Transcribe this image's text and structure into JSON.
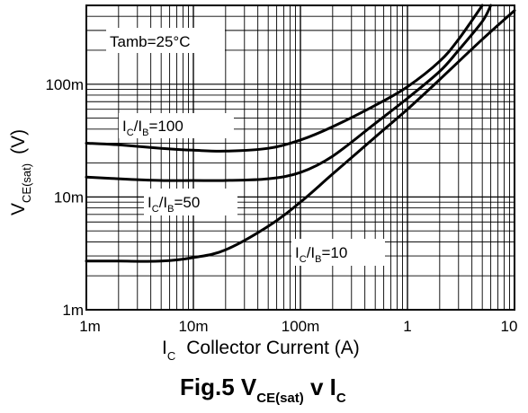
{
  "chart_data": {
    "type": "line",
    "x_scale": "log",
    "y_scale": "log",
    "xlim": [
      0.001,
      10
    ],
    "ylim": [
      0.001,
      0.5
    ],
    "x_ticks": [
      "1m",
      "10m",
      "100m",
      "1",
      "10"
    ],
    "y_ticks": [
      "1m",
      "10m",
      "100m"
    ],
    "xlabel_symbol": "I",
    "xlabel_sub": "C",
    "xlabel_text": "Collector Current (A)",
    "ylabel_symbol": "V",
    "ylabel_sub": "CE(sat)",
    "ylabel_unit": "(V)",
    "grid": true,
    "condition": "Tamb=25°C",
    "title_main": "Fig.5  V",
    "title_sub1": "CE(sat)",
    "title_mid": " v I",
    "title_sub2": "C",
    "series": [
      {
        "label_a": "I",
        "label_a_sub": "C",
        "label_b": "/I",
        "label_b_sub": "B",
        "label_c": "=100",
        "x": [
          0.001,
          0.002,
          0.005,
          0.01,
          0.02,
          0.05,
          0.1,
          0.2,
          0.5,
          1,
          2,
          3,
          5
        ],
        "y": [
          0.03,
          0.029,
          0.027,
          0.026,
          0.0255,
          0.027,
          0.032,
          0.042,
          0.065,
          0.095,
          0.16,
          0.25,
          0.5
        ]
      },
      {
        "label_a": "I",
        "label_a_sub": "C",
        "label_b": "/I",
        "label_b_sub": "B",
        "label_c": "=50",
        "x": [
          0.001,
          0.002,
          0.005,
          0.01,
          0.02,
          0.05,
          0.1,
          0.2,
          0.5,
          1,
          2,
          3,
          5,
          6
        ],
        "y": [
          0.015,
          0.0145,
          0.014,
          0.014,
          0.014,
          0.0145,
          0.0165,
          0.023,
          0.045,
          0.075,
          0.13,
          0.2,
          0.36,
          0.5
        ]
      },
      {
        "label_a": "I",
        "label_a_sub": "C",
        "label_b": "/I",
        "label_b_sub": "B",
        "label_c": "=10",
        "x": [
          0.001,
          0.002,
          0.005,
          0.01,
          0.02,
          0.05,
          0.1,
          0.2,
          0.5,
          1,
          2,
          5,
          10
        ],
        "y": [
          0.0027,
          0.0027,
          0.0027,
          0.0029,
          0.0034,
          0.0055,
          0.009,
          0.016,
          0.034,
          0.06,
          0.11,
          0.25,
          0.45
        ]
      }
    ]
  }
}
